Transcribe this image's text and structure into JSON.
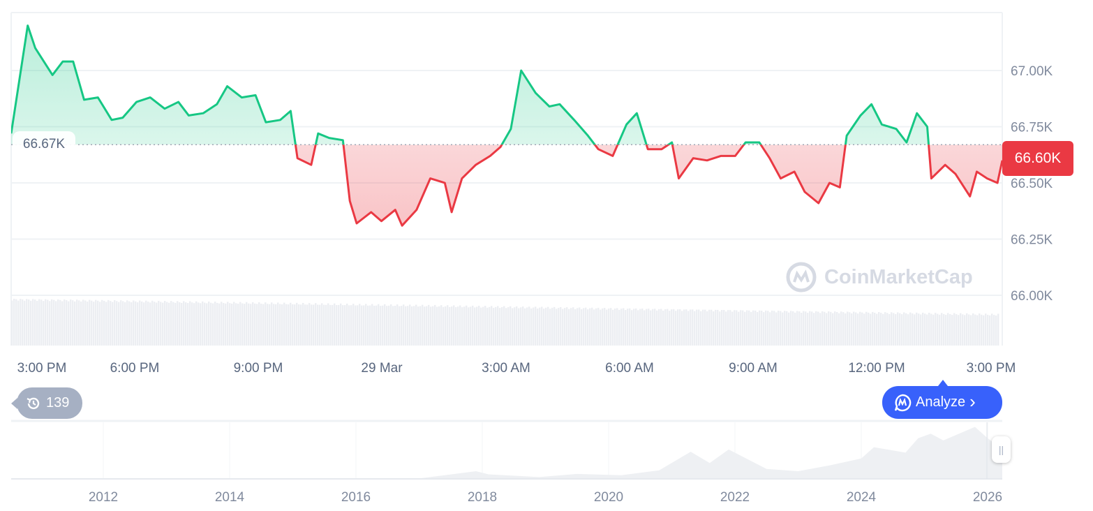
{
  "chart_data": [
    {
      "type": "area",
      "y_unit": "USD",
      "y_ticks": [
        "67.00K",
        "66.75K",
        "66.50K",
        "66.25K",
        "66.00K"
      ],
      "ylim": [
        65.75,
        67.25
      ],
      "x_ticks": [
        "3:00 PM",
        "6:00 PM",
        "9:00 PM",
        "29 Mar",
        "3:00 AM",
        "6:00 AM",
        "9:00 AM",
        "12:00 PM",
        "3:00 PM"
      ],
      "grid": true,
      "baseline_value": 66.67,
      "baseline_label": "66.67K",
      "current_price_label": "66.60K",
      "colors": {
        "up": "#16c784",
        "down": "#ea3943",
        "baseline_label_bg": "#ffffff"
      },
      "x": [
        "28 Mar 15:00",
        "28 Mar 15:24",
        "28 Mar 15:35",
        "28 Mar 16:00",
        "28 Mar 16:15",
        "28 Mar 16:30",
        "28 Mar 16:46",
        "28 Mar 17:06",
        "28 Mar 17:26",
        "28 Mar 17:42",
        "28 Mar 18:02",
        "28 Mar 18:22",
        "28 Mar 18:43",
        "28 Mar 19:03",
        "28 Mar 19:18",
        "28 Mar 19:39",
        "28 Mar 19:59",
        "28 Mar 20:14",
        "28 Mar 20:35",
        "28 Mar 20:55",
        "28 Mar 21:10",
        "28 Mar 21:31",
        "28 Mar 21:46",
        "28 Mar 21:56",
        "28 Mar 22:16",
        "28 Mar 22:26",
        "28 Mar 22:42",
        "28 Mar 23:02",
        "28 Mar 23:12",
        "28 Mar 23:22",
        "28 Mar 23:43",
        "28 Mar 23:58",
        "29 Mar 00:18",
        "29 Mar 00:28",
        "29 Mar 00:49",
        "29 Mar 01:09",
        "29 Mar 01:30",
        "29 Mar 01:40",
        "29 Mar 01:55",
        "29 Mar 02:15",
        "29 Mar 02:36",
        "29 Mar 02:51",
        "29 Mar 03:06",
        "29 Mar 03:21",
        "29 Mar 03:42",
        "29 Mar 04:02",
        "29 Mar 04:17",
        "29 Mar 04:38",
        "29 Mar 04:58",
        "29 Mar 05:13",
        "29 Mar 05:34",
        "29 Mar 05:54",
        "29 Mar 06:09",
        "29 Mar 06:25",
        "29 Mar 06:45",
        "29 Mar 07:00",
        "29 Mar 07:10",
        "29 Mar 07:31",
        "29 Mar 07:51",
        "29 Mar 08:11",
        "29 Mar 08:32",
        "29 Mar 08:47",
        "29 Mar 09:07",
        "29 Mar 09:22",
        "29 Mar 09:38",
        "29 Mar 09:58",
        "29 Mar 10:13",
        "29 Mar 10:33",
        "29 Mar 10:49",
        "29 Mar 11:04",
        "29 Mar 11:14",
        "29 Mar 11:34",
        "29 Mar 11:50",
        "29 Mar 12:05",
        "29 Mar 12:26",
        "29 Mar 12:41",
        "29 Mar 12:56",
        "29 Mar 13:11",
        "29 Mar 13:17",
        "29 Mar 13:37",
        "29 Mar 13:52",
        "29 Mar 14:13",
        "29 Mar 14:23",
        "29 Mar 14:38",
        "29 Mar 14:53",
        "29 Mar 15:00"
      ],
      "values": [
        66.72,
        67.2,
        67.1,
        66.98,
        67.04,
        67.04,
        66.87,
        66.88,
        66.78,
        66.79,
        66.86,
        66.88,
        66.83,
        66.86,
        66.8,
        66.81,
        66.85,
        66.93,
        66.88,
        66.89,
        66.77,
        66.78,
        66.82,
        66.61,
        66.58,
        66.72,
        66.7,
        66.69,
        66.42,
        66.32,
        66.37,
        66.33,
        66.38,
        66.31,
        66.38,
        66.52,
        66.5,
        66.37,
        66.52,
        66.58,
        66.62,
        66.66,
        66.74,
        67.0,
        66.9,
        66.84,
        66.85,
        66.78,
        66.71,
        66.65,
        66.62,
        66.76,
        66.81,
        66.65,
        66.65,
        66.68,
        66.52,
        66.61,
        66.6,
        66.62,
        66.62,
        66.68,
        66.68,
        66.61,
        66.52,
        66.55,
        66.46,
        66.41,
        66.5,
        66.48,
        66.71,
        66.8,
        66.85,
        66.76,
        66.74,
        66.68,
        66.81,
        66.75,
        66.52,
        66.58,
        66.54,
        66.44,
        66.55,
        66.52,
        66.5,
        66.6
      ]
    },
    {
      "type": "area",
      "role": "navigator",
      "x_ticks": [
        "2012",
        "2014",
        "2016",
        "2018",
        "2020",
        "2022",
        "2024",
        "2026"
      ],
      "x": [
        2010.6,
        2011.5,
        2013.9,
        2014.5,
        2016.0,
        2017.0,
        2017.9,
        2018.1,
        2018.9,
        2019.5,
        2020.2,
        2020.8,
        2021.3,
        2021.6,
        2021.9,
        2022.5,
        2023.0,
        2023.5,
        2024.0,
        2024.2,
        2024.7,
        2024.9,
        2025.1,
        2025.3,
        2025.8,
        2026.0,
        2026.24
      ],
      "values": [
        0,
        10,
        1000,
        500,
        400,
        1000,
        17000,
        10000,
        4000,
        11000,
        8000,
        19000,
        60000,
        35000,
        65000,
        22000,
        17000,
        30000,
        45000,
        70000,
        58000,
        90000,
        100000,
        85000,
        115000,
        90000,
        67000
      ]
    }
  ],
  "watermark": "CoinMarketCap",
  "history_badge": {
    "icon": "history-icon",
    "count": "139"
  },
  "analyze_button": {
    "icon": "cmc-ai-icon",
    "label": "Analyze",
    "chevron": "›",
    "color": "#3861fb"
  }
}
